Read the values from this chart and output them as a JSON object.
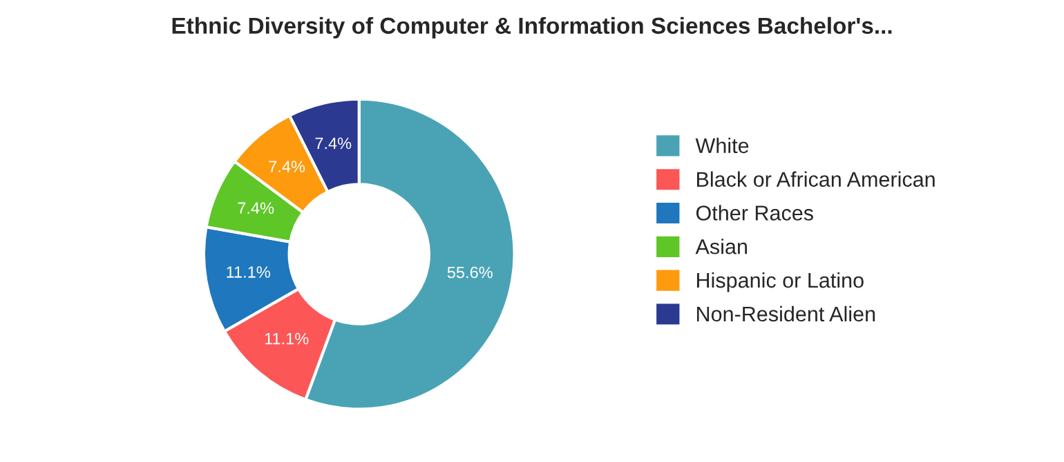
{
  "chart_data": {
    "type": "donut",
    "title": "Ethnic Diversity of Computer & Information Sciences Bachelor's...",
    "categories": [
      "White",
      "Black or African American",
      "Other Races",
      "Asian",
      "Hispanic or Latino",
      "Non-Resident Alien"
    ],
    "values": [
      55.6,
      11.1,
      11.1,
      7.4,
      7.4,
      7.4
    ],
    "colors": [
      "#4aa3b5",
      "#fc5656",
      "#1f77be",
      "#5fc628",
      "#fd9a0e",
      "#2b3990"
    ],
    "value_labels": [
      "55.6%",
      "11.1%",
      "11.1%",
      "7.4%",
      "7.4%",
      "7.4%"
    ],
    "legend": "right"
  }
}
